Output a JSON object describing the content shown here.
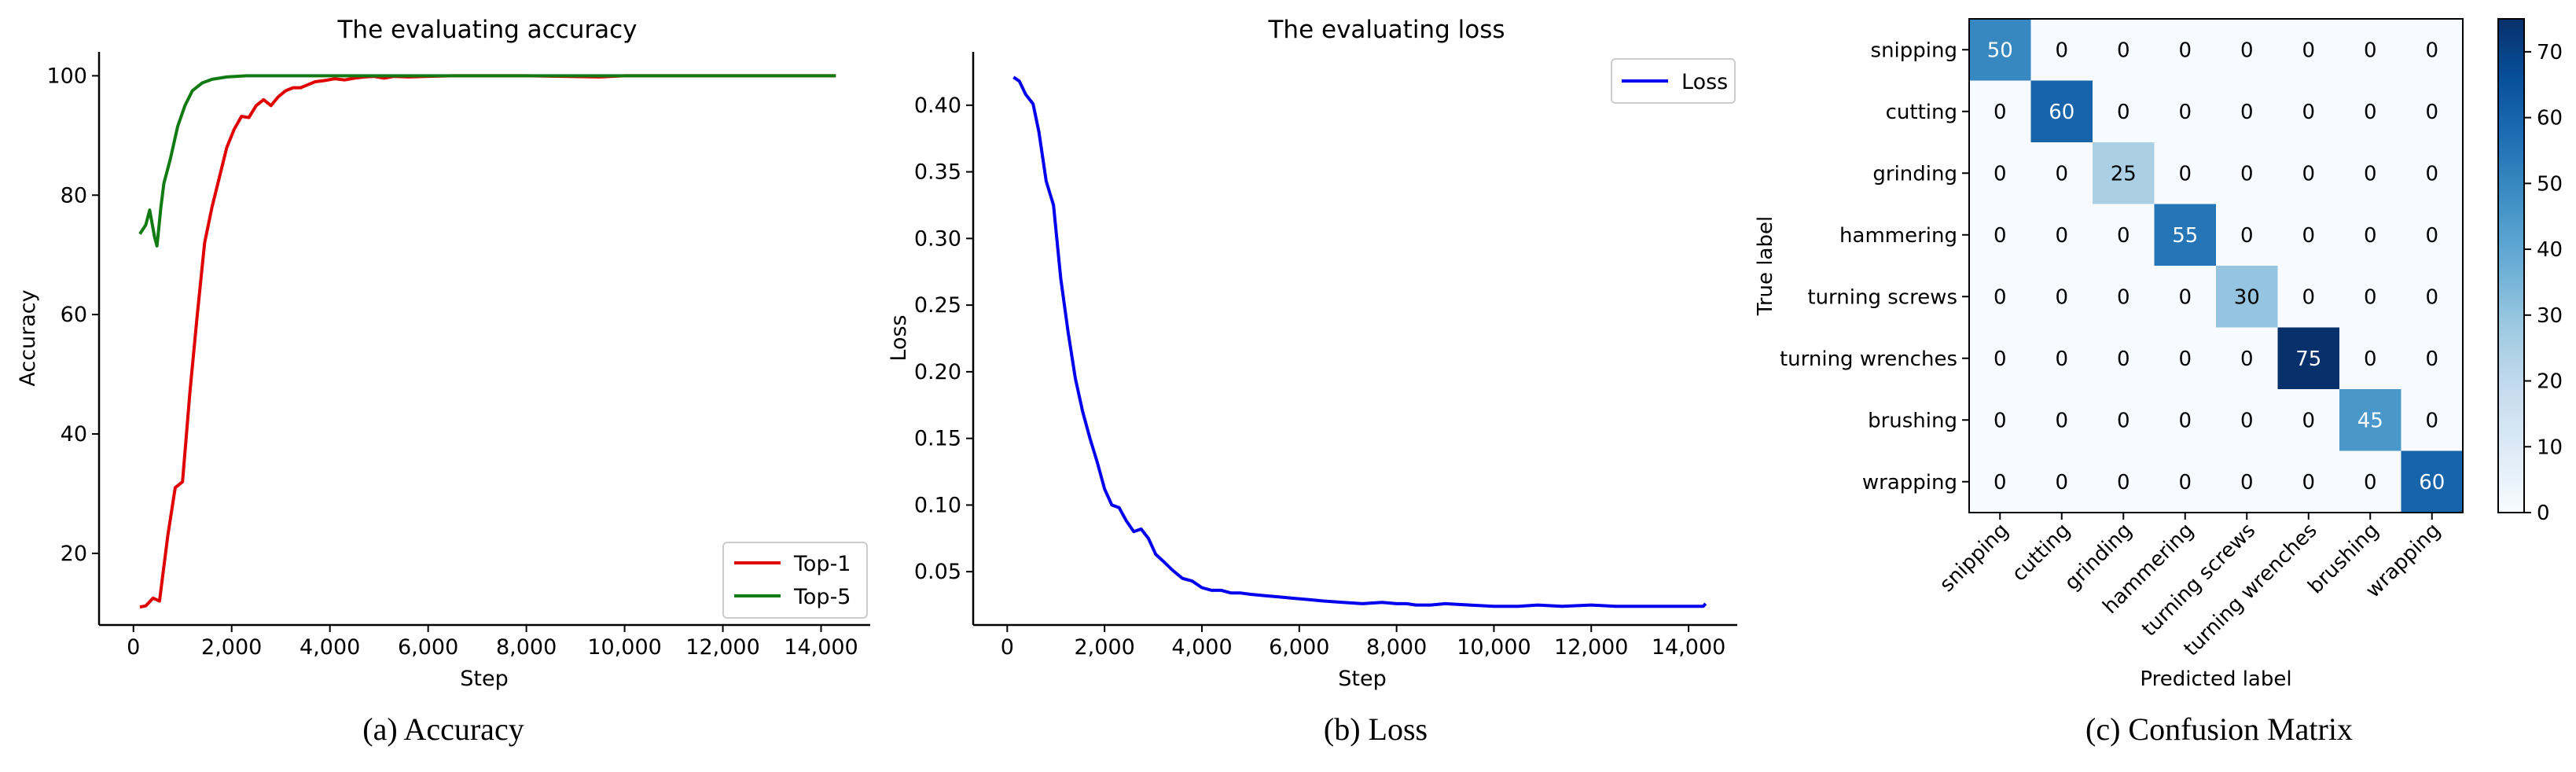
{
  "chart_data": [
    {
      "type": "line",
      "title": "The evaluating accuracy",
      "xlabel": "Step",
      "ylabel": "Accuracy",
      "caption": "(a) Accuracy",
      "xlim": [
        -700,
        15000
      ],
      "ylim": [
        8,
        104
      ],
      "x_ticks": [
        0,
        2000,
        4000,
        6000,
        8000,
        10000,
        12000,
        14000
      ],
      "x_tick_labels": [
        "0",
        "2,000",
        "4,000",
        "6,000",
        "8,000",
        "10,000",
        "12,000",
        "14,000"
      ],
      "y_ticks": [
        20,
        40,
        60,
        80,
        100
      ],
      "y_tick_labels": [
        "20",
        "40",
        "60",
        "80",
        "100"
      ],
      "legend_position": "lower-right",
      "grid": false,
      "series": [
        {
          "name": "Top-1",
          "color": "#e00000",
          "points": [
            [
              130,
              11
            ],
            [
              250,
              11.2
            ],
            [
              400,
              12.5
            ],
            [
              530,
              12
            ],
            [
              700,
              23
            ],
            [
              850,
              31
            ],
            [
              1000,
              32
            ],
            [
              1150,
              47
            ],
            [
              1300,
              60
            ],
            [
              1450,
              72
            ],
            [
              1600,
              78
            ],
            [
              1750,
              83
            ],
            [
              1900,
              88
            ],
            [
              2050,
              91
            ],
            [
              2200,
              93.2
            ],
            [
              2350,
              93
            ],
            [
              2500,
              95
            ],
            [
              2650,
              96
            ],
            [
              2800,
              95
            ],
            [
              2950,
              96.5
            ],
            [
              3100,
              97.5
            ],
            [
              3250,
              98
            ],
            [
              3400,
              98
            ],
            [
              3550,
              98.5
            ],
            [
              3700,
              99
            ],
            [
              3900,
              99.2
            ],
            [
              4100,
              99.5
            ],
            [
              4300,
              99.3
            ],
            [
              4500,
              99.6
            ],
            [
              4700,
              99.8
            ],
            [
              4900,
              99.9
            ],
            [
              5100,
              99.6
            ],
            [
              5300,
              99.9
            ],
            [
              5600,
              99.8
            ],
            [
              6000,
              99.9
            ],
            [
              6500,
              100
            ],
            [
              8000,
              100
            ],
            [
              9500,
              99.8
            ],
            [
              10000,
              100
            ],
            [
              12000,
              100
            ],
            [
              14300,
              100
            ]
          ]
        },
        {
          "name": "Top-5",
          "color": "#127a12",
          "points": [
            [
              130,
              73.5
            ],
            [
              250,
              75
            ],
            [
              330,
              77.5
            ],
            [
              430,
              73
            ],
            [
              480,
              71.5
            ],
            [
              560,
              78
            ],
            [
              620,
              82
            ],
            [
              750,
              86
            ],
            [
              900,
              91.5
            ],
            [
              1050,
              95
            ],
            [
              1200,
              97.5
            ],
            [
              1400,
              98.8
            ],
            [
              1600,
              99.4
            ],
            [
              1900,
              99.8
            ],
            [
              2300,
              100
            ],
            [
              4000,
              100
            ],
            [
              8000,
              100
            ],
            [
              14300,
              100
            ]
          ]
        }
      ]
    },
    {
      "type": "line",
      "title": "The evaluating loss",
      "xlabel": "Step",
      "ylabel": "Loss",
      "caption": "(b) Loss",
      "xlim": [
        -700,
        15000
      ],
      "ylim": [
        0.01,
        0.44
      ],
      "x_ticks": [
        0,
        2000,
        4000,
        6000,
        8000,
        10000,
        12000,
        14000
      ],
      "x_tick_labels": [
        "0",
        "2,000",
        "4,000",
        "6,000",
        "8,000",
        "10,000",
        "12,000",
        "14,000"
      ],
      "y_ticks": [
        0.05,
        0.1,
        0.15,
        0.2,
        0.25,
        0.3,
        0.35,
        0.4
      ],
      "y_tick_labels": [
        "0.05",
        "0.10",
        "0.15",
        "0.20",
        "0.25",
        "0.30",
        "0.35",
        "0.40"
      ],
      "legend_position": "upper-right",
      "grid": false,
      "series": [
        {
          "name": "Loss",
          "color": "#0000ee",
          "points": [
            [
              130,
              0.421
            ],
            [
              250,
              0.418
            ],
            [
              380,
              0.408
            ],
            [
              530,
              0.401
            ],
            [
              650,
              0.38
            ],
            [
              800,
              0.343
            ],
            [
              950,
              0.325
            ],
            [
              1100,
              0.27
            ],
            [
              1250,
              0.23
            ],
            [
              1400,
              0.195
            ],
            [
              1550,
              0.17
            ],
            [
              1700,
              0.15
            ],
            [
              1850,
              0.132
            ],
            [
              2000,
              0.112
            ],
            [
              2150,
              0.1
            ],
            [
              2300,
              0.098
            ],
            [
              2450,
              0.088
            ],
            [
              2600,
              0.08
            ],
            [
              2750,
              0.082
            ],
            [
              2900,
              0.075
            ],
            [
              3050,
              0.063
            ],
            [
              3200,
              0.058
            ],
            [
              3400,
              0.051
            ],
            [
              3600,
              0.045
            ],
            [
              3800,
              0.043
            ],
            [
              4000,
              0.038
            ],
            [
              4200,
              0.036
            ],
            [
              4400,
              0.036
            ],
            [
              4600,
              0.034
            ],
            [
              4800,
              0.034
            ],
            [
              5000,
              0.033
            ],
            [
              5300,
              0.032
            ],
            [
              5600,
              0.031
            ],
            [
              5900,
              0.03
            ],
            [
              6200,
              0.029
            ],
            [
              6500,
              0.028
            ],
            [
              6900,
              0.027
            ],
            [
              7300,
              0.026
            ],
            [
              7700,
              0.027
            ],
            [
              8000,
              0.026
            ],
            [
              8200,
              0.026
            ],
            [
              8400,
              0.025
            ],
            [
              8700,
              0.025
            ],
            [
              9000,
              0.026
            ],
            [
              9500,
              0.025
            ],
            [
              10000,
              0.024
            ],
            [
              10500,
              0.024
            ],
            [
              10900,
              0.025
            ],
            [
              11400,
              0.024
            ],
            [
              12000,
              0.025
            ],
            [
              12500,
              0.024
            ],
            [
              13000,
              0.024
            ],
            [
              13500,
              0.024
            ],
            [
              14000,
              0.024
            ],
            [
              14300,
              0.024
            ],
            [
              14350,
              0.026
            ]
          ]
        }
      ]
    },
    {
      "type": "heatmap",
      "caption": "(c) Confusion Matrix",
      "xlabel": "Predicted label",
      "ylabel": "True label",
      "row_labels": [
        "snipping",
        "cutting",
        "grinding",
        "hammering",
        "turning screws",
        "turning wrenches",
        "brushing",
        "wrapping"
      ],
      "col_labels": [
        "snipping",
        "cutting",
        "grinding",
        "hammering",
        "turning screws",
        "turning wrenches",
        "brushing",
        "wrapping"
      ],
      "values": [
        [
          50,
          0,
          0,
          0,
          0,
          0,
          0,
          0
        ],
        [
          0,
          60,
          0,
          0,
          0,
          0,
          0,
          0
        ],
        [
          0,
          0,
          25,
          0,
          0,
          0,
          0,
          0
        ],
        [
          0,
          0,
          0,
          55,
          0,
          0,
          0,
          0
        ],
        [
          0,
          0,
          0,
          0,
          30,
          0,
          0,
          0
        ],
        [
          0,
          0,
          0,
          0,
          0,
          75,
          0,
          0
        ],
        [
          0,
          0,
          0,
          0,
          0,
          0,
          45,
          0
        ],
        [
          0,
          0,
          0,
          0,
          0,
          0,
          0,
          60
        ]
      ],
      "colorbar_range": [
        0,
        75
      ],
      "colorbar_ticks": [
        0,
        10,
        20,
        30,
        40,
        50,
        60,
        70
      ],
      "colorbar_tick_labels": [
        "0",
        "10",
        "20",
        "30",
        "40",
        "50",
        "60",
        "70"
      ],
      "colormap": "Blues"
    }
  ]
}
